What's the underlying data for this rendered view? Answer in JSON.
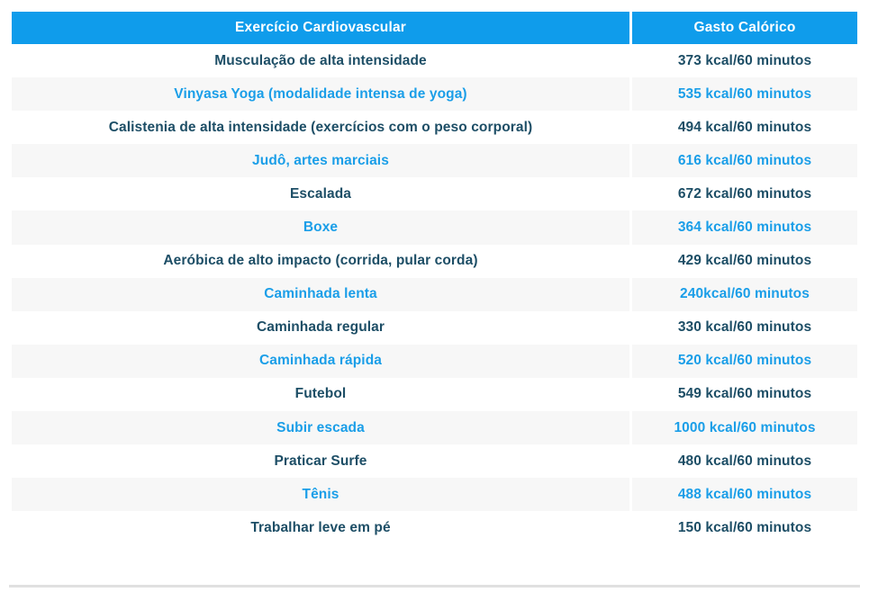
{
  "colors": {
    "header_bg": "#0f9ceb",
    "header_text": "#ffffff",
    "row_bg": "#ffffff",
    "row_alt_bg": "#f7f7f7",
    "row_text_dark": "#1d4e66",
    "row_text_blue": "#1a9ee8",
    "bottom_divider": "#e0e0e0"
  },
  "table": {
    "header": {
      "exercise": "Exercício Cardiovascular",
      "calories": "Gasto Calórico"
    },
    "rows": [
      {
        "exercise": "Musculação de alta intensidade",
        "calories": "373 kcal/60 minutos"
      },
      {
        "exercise": "Vinyasa Yoga (modalidade intensa de yoga)",
        "calories": "535 kcal/60 minutos"
      },
      {
        "exercise": "Calistenia de alta intensidade (exercícios com o peso corporal)",
        "calories": "494 kcal/60 minutos"
      },
      {
        "exercise": "Judô, artes marciais",
        "calories": "616 kcal/60 minutos"
      },
      {
        "exercise": "Escalada",
        "calories": "672 kcal/60 minutos"
      },
      {
        "exercise": "Boxe",
        "calories": "364 kcal/60 minutos"
      },
      {
        "exercise": "Aeróbica de alto impacto (corrida, pular corda)",
        "calories": "429 kcal/60 minutos"
      },
      {
        "exercise": "Caminhada lenta",
        "calories": "240kcal/60 minutos"
      },
      {
        "exercise": "Caminhada regular",
        "calories": "330 kcal/60 minutos"
      },
      {
        "exercise": "Caminhada rápida",
        "calories": "520 kcal/60 minutos"
      },
      {
        "exercise": "Futebol",
        "calories": "549 kcal/60 minutos"
      },
      {
        "exercise": "Subir escada",
        "calories": "1000 kcal/60 minutos"
      },
      {
        "exercise": "Praticar Surfe",
        "calories": "480 kcal/60 minutos"
      },
      {
        "exercise": "Tênis",
        "calories": "488 kcal/60 minutos"
      },
      {
        "exercise": "Trabalhar leve em pé",
        "calories": "150 kcal/60 minutos"
      }
    ]
  },
  "chart_data": {
    "type": "table",
    "title": "",
    "columns": [
      "Exercício Cardiovascular",
      "Gasto Calórico"
    ],
    "categories": [
      "Musculação de alta intensidade",
      "Vinyasa Yoga (modalidade intensa de yoga)",
      "Calistenia de alta intensidade (exercícios com o peso corporal)",
      "Judô, artes marciais",
      "Escalada",
      "Boxe",
      "Aeróbica de alto impacto (corrida, pular corda)",
      "Caminhada lenta",
      "Caminhada regular",
      "Caminhada rápida",
      "Futebol",
      "Subir escada",
      "Praticar Surfe",
      "Tênis",
      "Trabalhar leve em pé"
    ],
    "values": [
      373,
      535,
      494,
      616,
      672,
      364,
      429,
      240,
      330,
      520,
      549,
      1000,
      480,
      488,
      150
    ],
    "value_unit": "kcal/60 minutos"
  }
}
